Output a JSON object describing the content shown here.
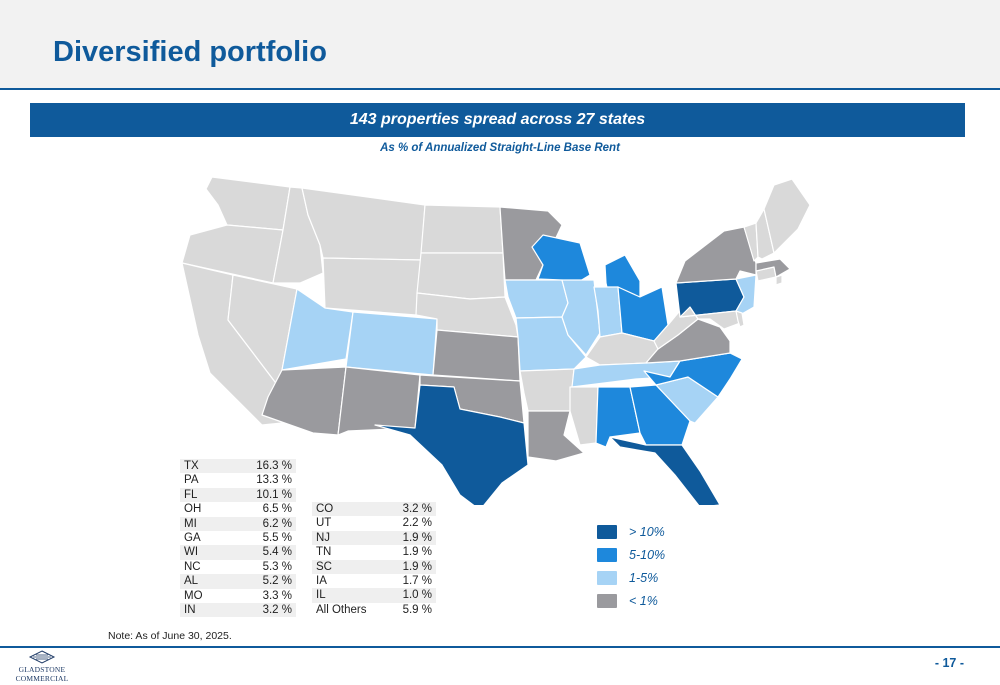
{
  "header": {
    "title": "Diversified portfolio"
  },
  "banner": {
    "text": "143 properties spread across 27 states"
  },
  "subtitle": "As % of Annualized Straight-Line Base Rent",
  "colors": {
    "gt10": "#0f5a9b",
    "p5to10": "#1e88dc",
    "p1to5": "#a6d3f5",
    "lt1": "#9a9a9e",
    "none": "#d9d9d9"
  },
  "map": {
    "states": [
      {
        "code": "WA",
        "tier": "none"
      },
      {
        "code": "OR",
        "tier": "none"
      },
      {
        "code": "CA",
        "tier": "none"
      },
      {
        "code": "NV",
        "tier": "none"
      },
      {
        "code": "ID",
        "tier": "none"
      },
      {
        "code": "MT",
        "tier": "none"
      },
      {
        "code": "WY",
        "tier": "none"
      },
      {
        "code": "UT",
        "tier": "p1to5"
      },
      {
        "code": "CO",
        "tier": "p1to5"
      },
      {
        "code": "AZ",
        "tier": "lt1"
      },
      {
        "code": "NM",
        "tier": "lt1"
      },
      {
        "code": "ND",
        "tier": "none"
      },
      {
        "code": "SD",
        "tier": "none"
      },
      {
        "code": "NE",
        "tier": "none"
      },
      {
        "code": "KS",
        "tier": "lt1"
      },
      {
        "code": "OK",
        "tier": "lt1"
      },
      {
        "code": "TX",
        "tier": "gt10"
      },
      {
        "code": "MN",
        "tier": "lt1"
      },
      {
        "code": "IA",
        "tier": "p1to5"
      },
      {
        "code": "MO",
        "tier": "p1to5"
      },
      {
        "code": "AR",
        "tier": "none"
      },
      {
        "code": "LA",
        "tier": "lt1"
      },
      {
        "code": "WI",
        "tier": "p5to10"
      },
      {
        "code": "IL",
        "tier": "p1to5"
      },
      {
        "code": "MI",
        "tier": "p5to10"
      },
      {
        "code": "IN",
        "tier": "p1to5"
      },
      {
        "code": "OH",
        "tier": "p5to10"
      },
      {
        "code": "KY",
        "tier": "none"
      },
      {
        "code": "TN",
        "tier": "p1to5"
      },
      {
        "code": "MS",
        "tier": "none"
      },
      {
        "code": "AL",
        "tier": "p5to10"
      },
      {
        "code": "GA",
        "tier": "p5to10"
      },
      {
        "code": "FL",
        "tier": "gt10"
      },
      {
        "code": "SC",
        "tier": "p1to5"
      },
      {
        "code": "NC",
        "tier": "p5to10"
      },
      {
        "code": "VA",
        "tier": "lt1"
      },
      {
        "code": "WV",
        "tier": "none"
      },
      {
        "code": "PA",
        "tier": "gt10"
      },
      {
        "code": "NY",
        "tier": "lt1"
      },
      {
        "code": "NJ",
        "tier": "p1to5"
      },
      {
        "code": "MD",
        "tier": "none"
      },
      {
        "code": "DE",
        "tier": "none"
      },
      {
        "code": "CT",
        "tier": "none"
      },
      {
        "code": "MA",
        "tier": "lt1"
      },
      {
        "code": "RI",
        "tier": "none"
      },
      {
        "code": "VT",
        "tier": "none"
      },
      {
        "code": "NH",
        "tier": "none"
      },
      {
        "code": "ME",
        "tier": "none"
      }
    ]
  },
  "table_left": [
    {
      "state": "TX",
      "pct": "16.3 %"
    },
    {
      "state": "PA",
      "pct": "13.3 %"
    },
    {
      "state": "FL",
      "pct": "10.1 %"
    },
    {
      "state": "OH",
      "pct": "6.5 %"
    },
    {
      "state": "MI",
      "pct": "6.2 %"
    },
    {
      "state": "GA",
      "pct": "5.5 %"
    },
    {
      "state": "WI",
      "pct": "5.4 %"
    },
    {
      "state": "NC",
      "pct": "5.3 %"
    },
    {
      "state": "AL",
      "pct": "5.2 %"
    },
    {
      "state": "MO",
      "pct": "3.3 %"
    },
    {
      "state": "IN",
      "pct": "3.2 %"
    }
  ],
  "table_right": [
    {
      "state": "CO",
      "pct": "3.2 %"
    },
    {
      "state": "UT",
      "pct": "2.2 %"
    },
    {
      "state": "NJ",
      "pct": "1.9 %"
    },
    {
      "state": "TN",
      "pct": "1.9 %"
    },
    {
      "state": "SC",
      "pct": "1.9 %"
    },
    {
      "state": "IA",
      "pct": "1.7 %"
    },
    {
      "state": "IL",
      "pct": "1.0 %"
    },
    {
      "state": "All Others",
      "pct": "5.9 %"
    }
  ],
  "legend": [
    {
      "label": "> 10%",
      "tier": "gt10"
    },
    {
      "label": "5-10%",
      "tier": "p5to10"
    },
    {
      "label": "1-5%",
      "tier": "p1to5"
    },
    {
      "label": "< 1%",
      "tier": "lt1"
    }
  ],
  "note": "Note: As of June 30, 2025.",
  "footer": {
    "logo_line1": "GLADSTONE",
    "logo_line2": "COMMERCIAL",
    "page_number": "- 17 -"
  }
}
